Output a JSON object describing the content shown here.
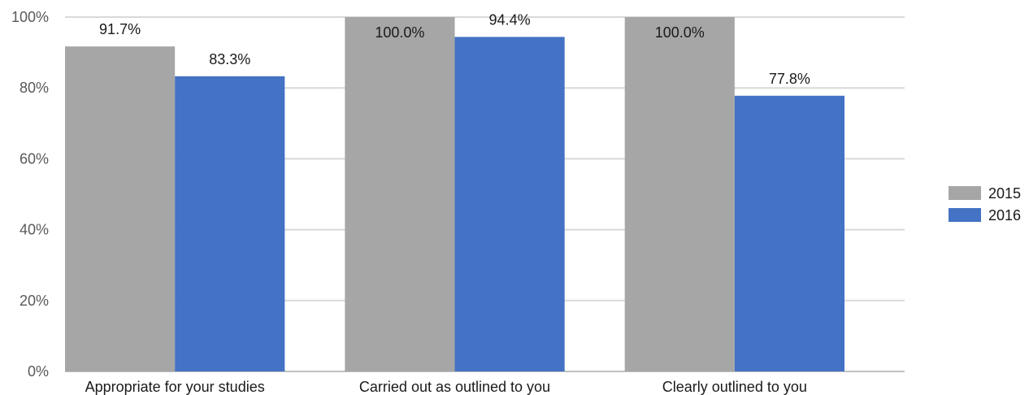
{
  "chart_data": {
    "type": "bar",
    "categories": [
      "Appropriate for your studies",
      "Carried out as outlined to you",
      "Clearly outlined to you"
    ],
    "series": [
      {
        "name": "2015",
        "values": [
          91.7,
          100.0,
          100.0
        ],
        "labels": [
          "91.7%",
          "100.0%",
          "100.0%"
        ],
        "color": "#a6a6a6"
      },
      {
        "name": "2016",
        "values": [
          83.3,
          94.4,
          77.8
        ],
        "labels": [
          "83.3%",
          "94.4%",
          "77.8%"
        ],
        "color": "#4472c4"
      }
    ],
    "yticks": [
      0,
      20,
      40,
      60,
      80,
      100
    ],
    "ytick_labels": [
      "0%",
      "20%",
      "40%",
      "60%",
      "80%",
      "100%"
    ],
    "ylim": [
      0,
      100
    ],
    "grid": true,
    "legend": "right"
  }
}
